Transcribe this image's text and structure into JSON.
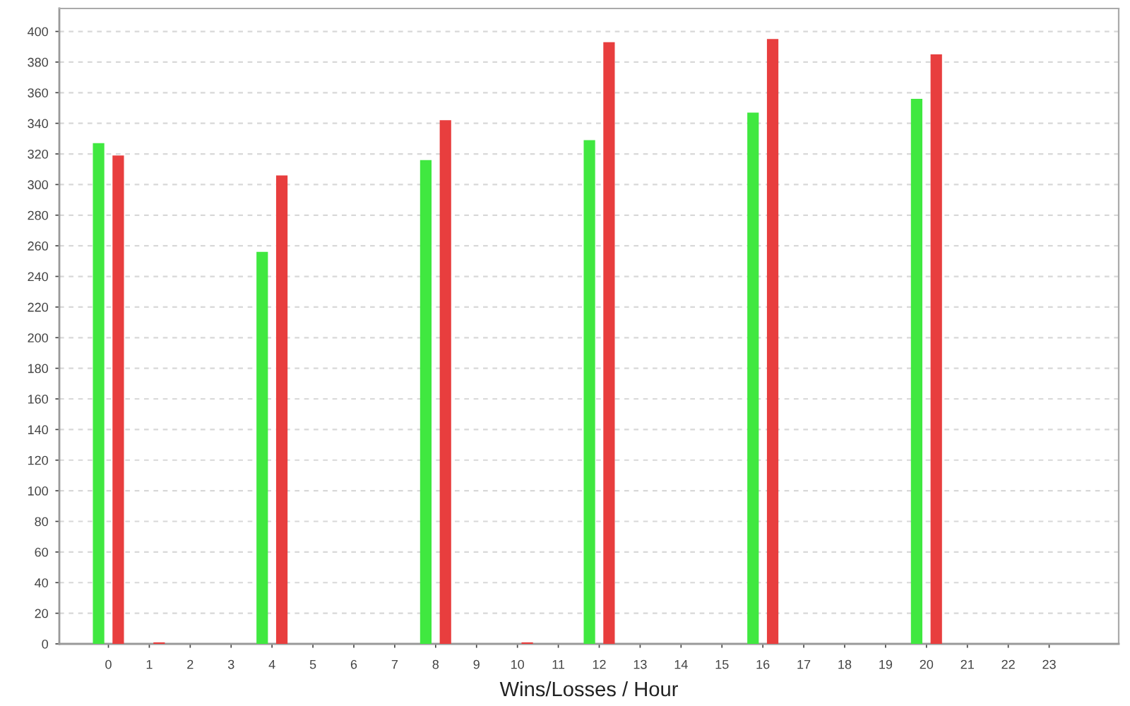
{
  "chart_data": {
    "type": "bar",
    "xlabel": "Wins/Losses / Hour",
    "categories": [
      "0",
      "1",
      "2",
      "3",
      "4",
      "5",
      "6",
      "7",
      "8",
      "9",
      "10",
      "11",
      "12",
      "13",
      "14",
      "15",
      "16",
      "17",
      "18",
      "19",
      "20",
      "21",
      "22",
      "23"
    ],
    "series": [
      {
        "color": "#40e840",
        "values": [
          327,
          0,
          0,
          0,
          256,
          0,
          0,
          0,
          316,
          0,
          0,
          0,
          329,
          0,
          0,
          0,
          347,
          0,
          0,
          0,
          356,
          0,
          0,
          0
        ]
      },
      {
        "color": "#e83e3e",
        "values": [
          319,
          1,
          0,
          0,
          306,
          0,
          0,
          0,
          342,
          0,
          1,
          0,
          393,
          0,
          0,
          0,
          395,
          0,
          0,
          0,
          385,
          0,
          0,
          0
        ]
      }
    ],
    "ylim": [
      0,
      415
    ],
    "yticks": [
      0,
      20,
      40,
      60,
      80,
      100,
      120,
      140,
      160,
      180,
      200,
      220,
      240,
      260,
      280,
      300,
      320,
      340,
      360,
      380,
      400
    ],
    "grid": "y"
  }
}
